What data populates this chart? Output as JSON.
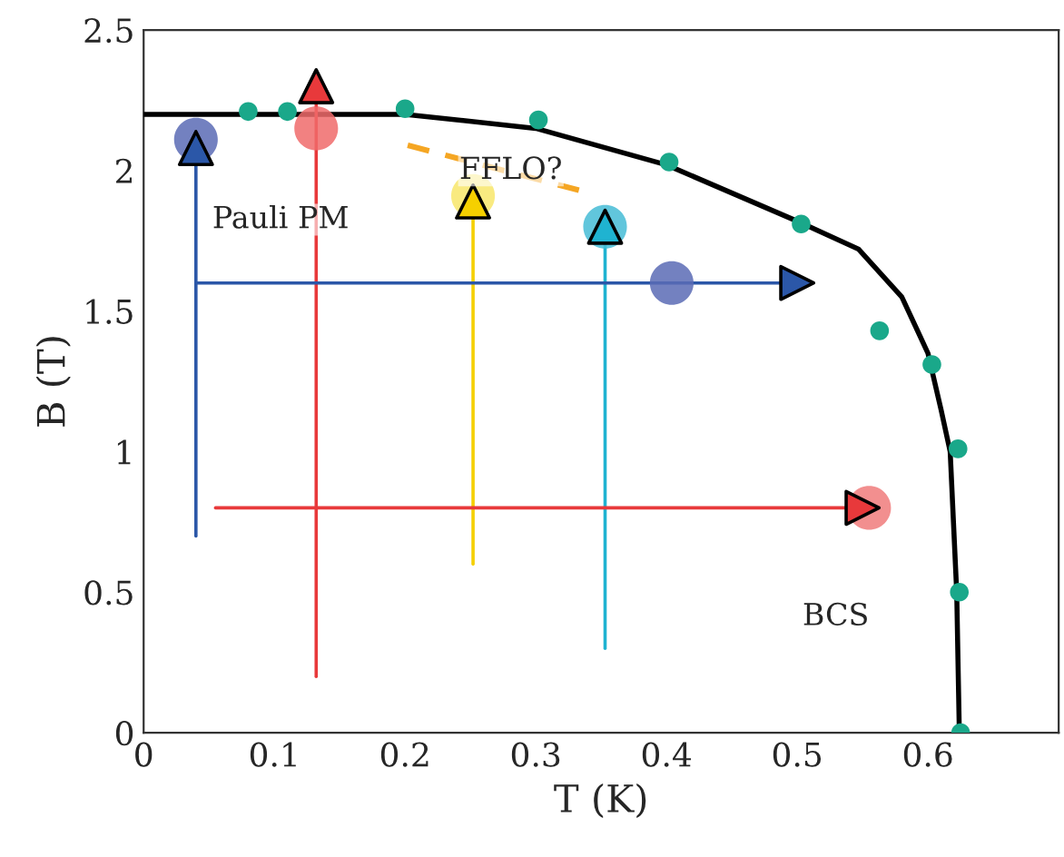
{
  "chart_data": {
    "type": "scatter",
    "xlabel": "T (K)",
    "ylabel": "B (T)",
    "xlim": [
      0,
      0.7
    ],
    "ylim": [
      0,
      2.5
    ],
    "xticks": [
      0,
      0.1,
      0.2,
      0.3,
      0.4,
      0.5,
      0.6
    ],
    "yticks": [
      0,
      0.5,
      1,
      1.5,
      2,
      2.5
    ],
    "grid": false,
    "legend": false,
    "series": [
      {
        "type": "line",
        "color": "#000000",
        "x": [
          0,
          0.1,
          0.2,
          0.3,
          0.4,
          0.5,
          0.547,
          0.58,
          0.6,
          0.61,
          0.617,
          0.622,
          0.624
        ],
        "values": [
          2.2,
          2.2,
          2.2,
          2.15,
          2.02,
          1.82,
          1.72,
          1.55,
          1.35,
          1.15,
          1.0,
          0.5,
          0
        ]
      },
      {
        "color": "#1aa88a",
        "x": [
          0.08,
          0.11,
          0.2,
          0.302,
          0.402,
          0.503,
          0.563,
          0.603,
          0.623,
          0.624,
          0.625
        ],
        "values": [
          2.21,
          2.21,
          2.22,
          2.18,
          2.03,
          1.81,
          1.43,
          1.31,
          1.01,
          0.5,
          0
        ]
      },
      {
        "type": "line",
        "color": "#f5a623",
        "line_style": "dashed",
        "x": [
          0.202,
          0.333
        ],
        "values": [
          2.09,
          1.93
        ]
      },
      {
        "type": "line",
        "color": "#2b57a8",
        "marker": "triangle",
        "x": [
          0.04,
          0.04
        ],
        "values": [
          0.7,
          2.08
        ]
      },
      {
        "type": "line",
        "color": "#e8393b",
        "marker": "triangle",
        "x": [
          0.132,
          0.132
        ],
        "values": [
          0.2,
          2.3
        ]
      },
      {
        "type": "line",
        "color": "#f5d000",
        "marker": "triangle",
        "x": [
          0.252,
          0.252
        ],
        "values": [
          0.6,
          1.89
        ]
      },
      {
        "type": "line",
        "color": "#1fb3d1",
        "marker": "triangle",
        "x": [
          0.353,
          0.353
        ],
        "values": [
          0.3,
          1.8
        ]
      },
      {
        "type": "line",
        "color": "#2b57a8",
        "marker": "triangle",
        "x": [
          0.04,
          0.5
        ],
        "values": [
          1.6,
          1.6
        ]
      },
      {
        "type": "line",
        "color": "#e8393b",
        "marker": "triangle",
        "x": [
          0.055,
          0.55
        ],
        "values": [
          0.8,
          0.8
        ]
      },
      {
        "colors": [
          "#5a6bb5",
          "#f06b6b",
          "#f8e66a",
          "#45bcd6",
          "#5a6bb5",
          "#f07b7b"
        ],
        "x": [
          0.04,
          0.132,
          0.252,
          0.353,
          0.404,
          0.555
        ],
        "values": [
          2.11,
          2.15,
          1.91,
          1.8,
          1.6,
          0.8
        ]
      }
    ],
    "annotations": [
      "FFLO?",
      "Pauli PM",
      "BCS"
    ]
  }
}
